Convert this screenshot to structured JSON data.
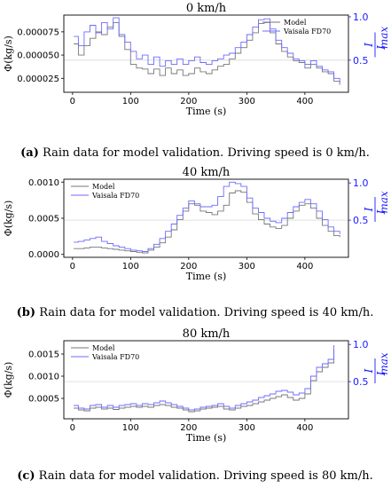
{
  "colors": {
    "model": "#777777",
    "vaisala": "#6b6bff",
    "right_axis": "#1a1aff",
    "grid": "#d8d8d8"
  },
  "chart_data": [
    {
      "type": "line",
      "title": "0 km/h",
      "xlabel": "Time (s)",
      "ylabel": "Φ(kg/s)",
      "right_ylabel": "I/I_max",
      "right_ylabel_num": "I",
      "right_ylabel_den": "I",
      "right_ylabel_sub": "max",
      "xlim": [
        -15,
        475
      ],
      "xticks": [
        0,
        100,
        200,
        300,
        400
      ],
      "ylim": [
        1e-05,
        9.3e-05
      ],
      "yticks": [
        2.5e-05,
        5e-05,
        7.5e-05
      ],
      "ytick_labels": [
        "0.000025",
        "0.000050",
        "0.000075"
      ],
      "right_ylim": [
        0.13,
        1.02
      ],
      "right_ticks": [
        0.5,
        1.0
      ],
      "right_tick_labels": [
        "0.5",
        "1.0"
      ],
      "legend": "top-right",
      "series": [
        {
          "name": "Model",
          "x": [
            2,
            10,
            20,
            30,
            40,
            50,
            60,
            70,
            80,
            90,
            100,
            110,
            120,
            130,
            140,
            150,
            160,
            170,
            180,
            190,
            200,
            210,
            220,
            230,
            240,
            250,
            260,
            270,
            280,
            290,
            300,
            310,
            320,
            330,
            340,
            350,
            360,
            370,
            380,
            390,
            400,
            410,
            420,
            430,
            440,
            450,
            460
          ],
          "y": [
            6.2e-05,
            5e-05,
            6e-05,
            6.8e-05,
            7.5e-05,
            7.2e-05,
            8e-05,
            8.5e-05,
            7e-05,
            5.6e-05,
            4e-05,
            3.6e-05,
            3.5e-05,
            3e-05,
            3.5e-05,
            2.8e-05,
            3.6e-05,
            3e-05,
            3.4e-05,
            2.8e-05,
            3e-05,
            3.6e-05,
            3.2e-05,
            3e-05,
            3.4e-05,
            3.8e-05,
            4e-05,
            4.6e-05,
            5.2e-05,
            5.8e-05,
            6.6e-05,
            7.4e-05,
            8.4e-05,
            8.5e-05,
            7.4e-05,
            6.2e-05,
            5.4e-05,
            4.8e-05,
            4.4e-05,
            4.2e-05,
            3.6e-05,
            4e-05,
            3.6e-05,
            3.2e-05,
            3e-05,
            2.2e-05,
            1.8e-05
          ]
        },
        {
          "name": "Vaisala FD70",
          "x": [
            2,
            10,
            20,
            30,
            40,
            50,
            60,
            70,
            80,
            90,
            100,
            110,
            120,
            130,
            140,
            150,
            160,
            170,
            180,
            190,
            200,
            210,
            220,
            230,
            240,
            250,
            260,
            270,
            280,
            290,
            300,
            310,
            320,
            330,
            340,
            350,
            360,
            370,
            380,
            390,
            400,
            410,
            420,
            430,
            440,
            450,
            460
          ],
          "y": [
            7e-05,
            6e-05,
            7.5e-05,
            8.2e-05,
            7.4e-05,
            8.5e-05,
            7.8e-05,
            9e-05,
            7.2e-05,
            6.4e-05,
            5.4e-05,
            4.6e-05,
            5e-05,
            4e-05,
            4.8e-05,
            3.8e-05,
            4.4e-05,
            4e-05,
            4.6e-05,
            4e-05,
            4.4e-05,
            4.8e-05,
            4.2e-05,
            4e-05,
            4.4e-05,
            4.6e-05,
            5e-05,
            5.2e-05,
            5.8e-05,
            6.4e-05,
            7.2e-05,
            8e-05,
            8.8e-05,
            8.9e-05,
            7.8e-05,
            6.6e-05,
            5.8e-05,
            5.2e-05,
            4.6e-05,
            4.4e-05,
            4e-05,
            4.4e-05,
            3.8e-05,
            3.4e-05,
            3.2e-05,
            2.5e-05,
            2e-05
          ]
        }
      ]
    },
    {
      "type": "line",
      "title": "40 km/h",
      "xlabel": "Time (s)",
      "ylabel": "Φ(kg/s)",
      "right_ylabel": "I/I_max",
      "right_ylabel_num": "I",
      "right_ylabel_den": "I",
      "right_ylabel_sub": "max",
      "xlim": [
        -15,
        475
      ],
      "xticks": [
        0,
        100,
        200,
        300,
        400
      ],
      "ylim": [
        -4e-05,
        0.00104
      ],
      "yticks": [
        0.0,
        0.0005,
        0.001
      ],
      "ytick_labels": [
        "0.0000",
        "0.0005",
        "0.0010"
      ],
      "right_ylim": [
        0.0,
        1.05
      ],
      "right_ticks": [
        0.5,
        1.0
      ],
      "right_tick_labels": [
        "0.5",
        "1.0"
      ],
      "legend": "top-left",
      "series": [
        {
          "name": "Model",
          "x": [
            2,
            10,
            20,
            30,
            40,
            50,
            60,
            70,
            80,
            90,
            100,
            110,
            120,
            130,
            140,
            150,
            160,
            170,
            180,
            190,
            200,
            210,
            220,
            230,
            240,
            250,
            260,
            270,
            280,
            290,
            300,
            310,
            320,
            330,
            340,
            350,
            360,
            370,
            380,
            390,
            400,
            410,
            420,
            430,
            440,
            450,
            460
          ],
          "y": [
            8e-05,
            8e-05,
            9e-05,
            0.0001,
            0.0001,
            9e-05,
            8e-05,
            7e-05,
            6e-05,
            5e-05,
            4e-05,
            3e-05,
            2e-05,
            6e-05,
            0.0001,
            0.00016,
            0.00024,
            0.00034,
            0.00048,
            0.0006,
            0.0007,
            0.00068,
            0.0006,
            0.00058,
            0.00055,
            0.0006,
            0.00068,
            0.00085,
            0.00088,
            0.00086,
            0.00072,
            0.00056,
            0.00048,
            0.00042,
            0.00038,
            0.00036,
            0.0004,
            0.0005,
            0.0006,
            0.00068,
            0.0007,
            0.00064,
            0.0005,
            0.0004,
            0.00032,
            0.00026,
            0.00024
          ]
        },
        {
          "name": "Vaisala FD70",
          "x": [
            2,
            10,
            20,
            30,
            40,
            50,
            60,
            70,
            80,
            90,
            100,
            110,
            120,
            130,
            140,
            150,
            160,
            170,
            180,
            190,
            200,
            210,
            220,
            230,
            240,
            250,
            260,
            270,
            280,
            290,
            300,
            310,
            320,
            330,
            340,
            350,
            360,
            370,
            380,
            390,
            400,
            410,
            420,
            430,
            440,
            450,
            460
          ],
          "y": [
            0.00017,
            0.00018,
            0.0002,
            0.00022,
            0.00024,
            0.00018,
            0.00015,
            0.00012,
            0.0001,
            8e-05,
            6e-05,
            5e-05,
            4e-05,
            8e-05,
            0.00014,
            0.00022,
            0.00032,
            0.00042,
            0.00054,
            0.00064,
            0.00074,
            0.0007,
            0.00066,
            0.00066,
            0.00068,
            0.0008,
            0.00094,
            0.001,
            0.00098,
            0.00094,
            0.00078,
            0.00064,
            0.00058,
            0.0005,
            0.00046,
            0.00044,
            0.0005,
            0.00058,
            0.00066,
            0.00072,
            0.00076,
            0.0007,
            0.0006,
            0.00048,
            0.00038,
            0.00032,
            0.00028
          ]
        }
      ]
    },
    {
      "type": "line",
      "title": "80 km/h",
      "xlabel": "Time (s)",
      "ylabel": "Φ(kg/s)",
      "right_ylabel": "I/I_max",
      "right_ylabel_num": "I",
      "right_ylabel_den": "I",
      "right_ylabel_sub": "max",
      "xlim": [
        -15,
        475
      ],
      "xticks": [
        0,
        100,
        200,
        300,
        400
      ],
      "ylim": [
        4e-05,
        0.0018
      ],
      "yticks": [
        0.0005,
        0.001,
        0.0015
      ],
      "ytick_labels": [
        "0.0005",
        "0.0010",
        "0.0015"
      ],
      "right_ylim": [
        0.0,
        1.05
      ],
      "right_ticks": [
        0.5,
        1.0
      ],
      "right_tick_labels": [
        "0.5",
        "1.0"
      ],
      "legend": "top-left",
      "series": [
        {
          "name": "Model",
          "x": [
            2,
            10,
            20,
            30,
            40,
            50,
            60,
            70,
            80,
            90,
            100,
            110,
            120,
            130,
            140,
            150,
            160,
            170,
            180,
            190,
            200,
            210,
            220,
            230,
            240,
            250,
            260,
            270,
            280,
            290,
            300,
            310,
            320,
            330,
            340,
            350,
            360,
            370,
            380,
            390,
            400,
            410,
            420,
            430,
            440,
            450
          ],
          "y": [
            0.00028,
            0.00024,
            0.00022,
            0.00028,
            0.0003,
            0.00026,
            0.00028,
            0.00025,
            0.00028,
            0.0003,
            0.00032,
            0.0003,
            0.00032,
            0.0003,
            0.00034,
            0.00036,
            0.00034,
            0.0003,
            0.00028,
            0.00024,
            0.0002,
            0.00022,
            0.00026,
            0.00028,
            0.0003,
            0.00032,
            0.00026,
            0.00024,
            0.00028,
            0.00032,
            0.00034,
            0.00038,
            0.00042,
            0.00046,
            0.0005,
            0.00054,
            0.00058,
            0.00052,
            0.00046,
            0.0005,
            0.0006,
            0.0009,
            0.0011,
            0.0012,
            0.0013,
            0.0016
          ]
        },
        {
          "name": "Vaisala FD70",
          "x": [
            2,
            10,
            20,
            30,
            40,
            50,
            60,
            70,
            80,
            90,
            100,
            110,
            120,
            130,
            140,
            150,
            160,
            170,
            180,
            190,
            200,
            210,
            220,
            230,
            240,
            250,
            260,
            270,
            280,
            290,
            300,
            310,
            320,
            330,
            340,
            350,
            360,
            370,
            380,
            390,
            400,
            410,
            420,
            430,
            440,
            450
          ],
          "y": [
            0.00034,
            0.00028,
            0.00026,
            0.00034,
            0.00036,
            0.0003,
            0.00034,
            0.0003,
            0.00034,
            0.00036,
            0.00038,
            0.00034,
            0.00038,
            0.00036,
            0.0004,
            0.00044,
            0.0004,
            0.00036,
            0.00032,
            0.00028,
            0.00024,
            0.00026,
            0.0003,
            0.00032,
            0.00034,
            0.00038,
            0.00032,
            0.00028,
            0.00034,
            0.00038,
            0.00042,
            0.00046,
            0.00052,
            0.00056,
            0.0006,
            0.00066,
            0.00068,
            0.00064,
            0.00058,
            0.00062,
            0.00072,
            0.001,
            0.0012,
            0.00128,
            0.00138,
            0.0017
          ]
        }
      ]
    }
  ],
  "captions": [
    {
      "label": "(a)",
      "text": " Rain data for model validation. Driving speed is 0 km/h."
    },
    {
      "label": "(b)",
      "text": " Rain data for model validation. Driving speed is 40 km/h."
    },
    {
      "label": "(c)",
      "text": " Rain data for model validation. Driving speed is 80 km/h."
    }
  ]
}
